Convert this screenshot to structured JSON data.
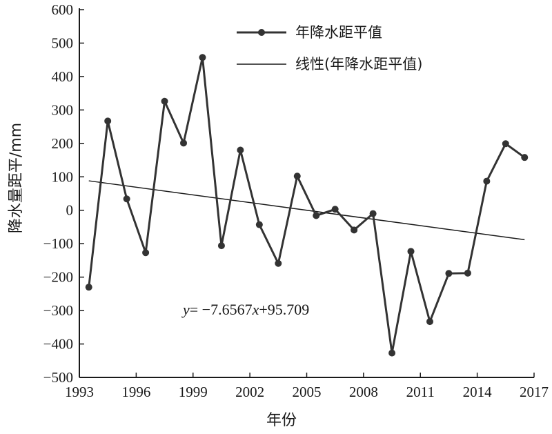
{
  "chart_data": {
    "type": "line",
    "title": "",
    "xlabel": "年份",
    "ylabel": "降水量距平/mm",
    "xlim": [
      1993,
      2017
    ],
    "ylim": [
      -500,
      600
    ],
    "x_ticks": [
      "1993",
      "1996",
      "1999",
      "2002",
      "2005",
      "2008",
      "2011",
      "2014",
      "2017"
    ],
    "y_ticks": [
      "600",
      "500",
      "400",
      "300",
      "200",
      "100",
      "0",
      "−100",
      "−200",
      "−300",
      "−400",
      "−500"
    ],
    "grid": false,
    "legend_position": "top-right",
    "colors": {
      "series": "#333333",
      "trend": "#1a1a1a"
    },
    "series": [
      {
        "name": "年降水距平值",
        "marker": "circle",
        "x": [
          1993.5,
          1994.5,
          1995.5,
          1996.5,
          1997.5,
          1998.5,
          1999.5,
          2000.5,
          2001.5,
          2002.5,
          2003.5,
          2004.5,
          2005.5,
          2006.5,
          2007.5,
          2008.5,
          2009.5,
          2010.5,
          2011.5,
          2012.5,
          2013.5,
          2014.5,
          2015.5,
          2016.5
        ],
        "values": [
          -230,
          267,
          34,
          -127,
          326,
          201,
          457,
          -106,
          180,
          -43,
          -159,
          102,
          -16,
          3,
          -59,
          -10,
          -427,
          -123,
          -333,
          -189,
          -188,
          87,
          199,
          158
        ]
      },
      {
        "name": "线性(年降水距平值)",
        "type": "trendline",
        "x": [
          1993.5,
          2016.5
        ],
        "values": [
          88.05,
          -88.05
        ]
      }
    ],
    "annotation": {
      "y_var": "y",
      "middle": "= −7.6567",
      "x_var": "x",
      "tail": "+95.709"
    }
  }
}
